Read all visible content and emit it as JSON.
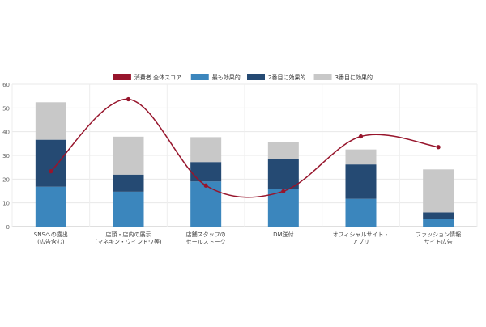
{
  "chart_data": {
    "type": "bar",
    "stacked": true,
    "categories": [
      [
        "SNSへの露出",
        "(広告含む)"
      ],
      [
        "店頭・店内の展示",
        "(マネキン・ウインドウ等)"
      ],
      [
        "店舗スタッフの",
        "セールストーク"
      ],
      [
        "DM送付"
      ],
      [
        "オフィシャルサイト・",
        "アプリ"
      ],
      [
        "ファッション情報",
        "サイト広告"
      ]
    ],
    "series": [
      {
        "name": "最も効果的",
        "color": "#3b86bd",
        "values": [
          16.8,
          14.7,
          19.0,
          15.9,
          11.7,
          3.2
        ]
      },
      {
        "name": "2番目に効果的",
        "color": "#254a73",
        "values": [
          19.8,
          7.2,
          8.2,
          12.4,
          14.5,
          2.8
        ]
      },
      {
        "name": "3番目に効果的",
        "color": "#c8c8c8",
        "values": [
          15.8,
          16.0,
          10.5,
          7.3,
          6.3,
          18.1
        ]
      }
    ],
    "line_series": {
      "name": "消費者 全体スコア",
      "color": "#97152c",
      "values": [
        23.3,
        53.7,
        17.3,
        14.9,
        38.0,
        33.5
      ]
    },
    "ylim": [
      0,
      60
    ],
    "yticks": [
      0,
      10,
      20,
      30,
      40,
      50,
      60
    ],
    "grid": true,
    "legend_position": "top-center",
    "title": "",
    "xlabel": "",
    "ylabel": ""
  }
}
